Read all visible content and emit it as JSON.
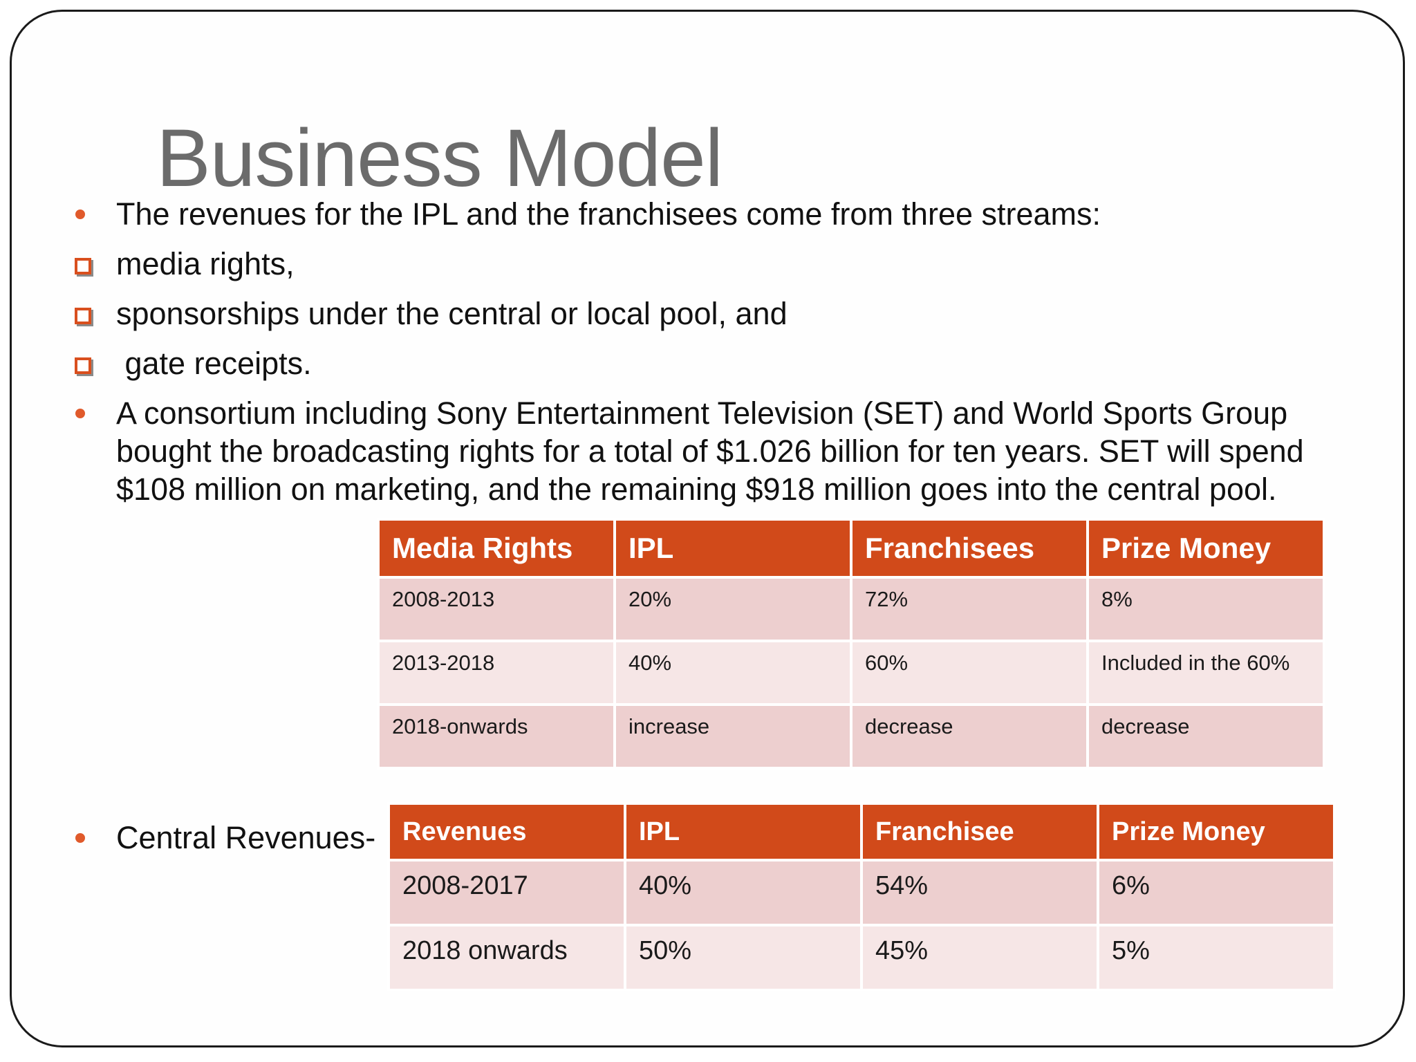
{
  "slide": {
    "title": "Business Model",
    "bullets": [
      {
        "style": "dot",
        "text": "The revenues for the IPL and the franchisees come from three streams:"
      },
      {
        "style": "square",
        "text": "media rights,"
      },
      {
        "style": "square",
        "text": "sponsorships under the central or local pool, and"
      },
      {
        "style": "square",
        "text": " gate receipts."
      },
      {
        "style": "dot",
        "text": "A consortium including Sony Entertainment Television (SET) and World Sports Group bought the broadcasting rights for a total of $1.026 billion for ten years. SET will spend $108 million on marketing, and the remaining $918 million goes into the central pool."
      }
    ],
    "central_label": "Central Revenues-",
    "media_table": {
      "headers": [
        "Media Rights",
        "IPL",
        "Franchisees",
        "Prize Money"
      ],
      "rows": [
        [
          "2008-2013",
          "20%",
          "72%",
          "8%"
        ],
        [
          "2013-2018",
          "40%",
          "60%",
          "Included in the 60%"
        ],
        [
          "2018-onwards",
          "increase",
          "decrease",
          "decrease"
        ]
      ]
    },
    "central_table": {
      "headers": [
        "Revenues",
        "IPL",
        "Franchisee",
        "Prize Money"
      ],
      "rows": [
        [
          "2008-2017",
          "40%",
          "54%",
          "6%"
        ],
        [
          "2018 onwards",
          "50%",
          "45%",
          "5%"
        ]
      ]
    },
    "colors": {
      "header_bg": "#d14a1a",
      "row_odd": "#edcfcf",
      "row_even": "#f6e6e6",
      "bullet": "#e05a2b",
      "title": "#6b6b6b"
    }
  }
}
